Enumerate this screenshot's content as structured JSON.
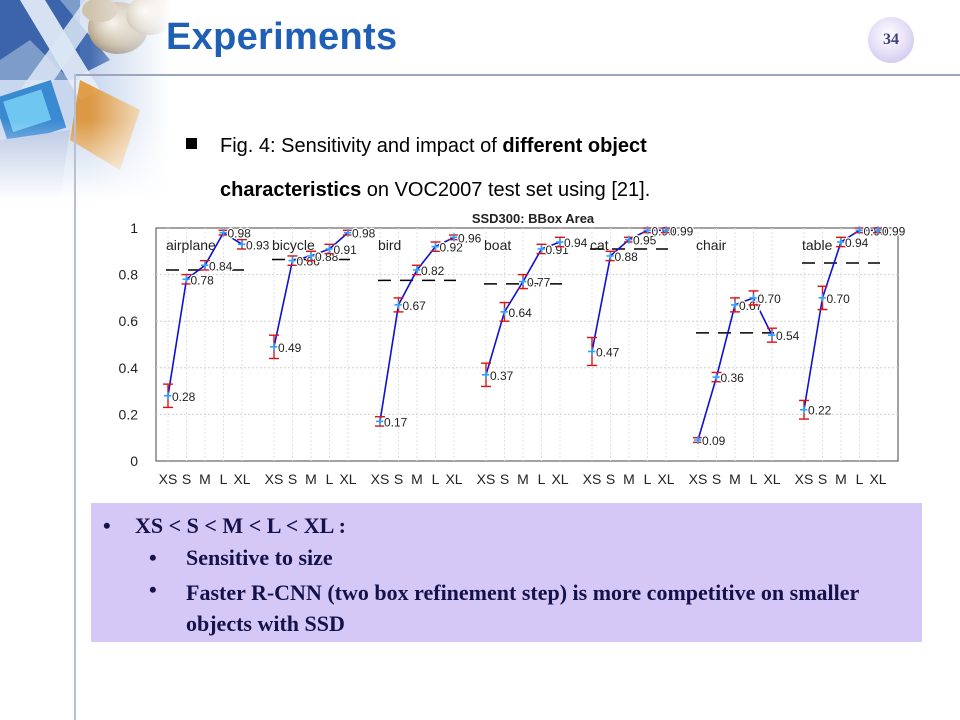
{
  "slide": {
    "title": "Experiments",
    "page_number": "34",
    "caption_line1_plain": "Fig. 4: Sensitivity and impact of ",
    "caption_line1_bold": "different object",
    "caption_line2_bold": "characteristics",
    "caption_line2_plain": " on VOC2007  test set using [21]."
  },
  "notes": {
    "bullet_glyph": "•",
    "main": "XS < S < M < L < XL :",
    "sub1": "Sensitive to size",
    "sub2": "Faster R-CNN (two box refinement step) is more competitive on smaller objects with SSD"
  },
  "chart_data": {
    "type": "line",
    "title": "SSD300: BBox Area",
    "ylim": [
      0,
      1
    ],
    "yticks": [
      0,
      0.2,
      0.4,
      0.6,
      0.8,
      1
    ],
    "ytick_labels": [
      "0",
      "0.2",
      "0.4",
      "0.6",
      "0.8",
      "1"
    ],
    "categories": [
      "XS",
      "S",
      "M",
      "L",
      "XL"
    ],
    "grid": true,
    "colors": {
      "line": "#1010d0",
      "errorbar": "#e01010",
      "mean": "#000000",
      "point": "#30a0ff"
    },
    "groups": [
      {
        "name": "airplane",
        "values": [
          0.28,
          0.78,
          0.84,
          0.98,
          0.93
        ],
        "mean": 0.82,
        "errors": [
          0.05,
          0.02,
          0.02,
          0.01,
          0.02
        ]
      },
      {
        "name": "bicycle",
        "values": [
          0.49,
          0.86,
          0.88,
          0.91,
          0.98
        ],
        "labels": [
          "0.49",
          "0.86",
          "0.88",
          "0.91",
          "0.98"
        ],
        "mean": 0.865,
        "errors": [
          0.05,
          0.02,
          0.02,
          0.02,
          0.01
        ]
      },
      {
        "name": "bird",
        "values": [
          0.17,
          0.67,
          0.82,
          0.92,
          0.96
        ],
        "mean": 0.775,
        "errors": [
          0.02,
          0.03,
          0.02,
          0.02,
          0.01
        ]
      },
      {
        "name": "boat",
        "values": [
          0.37,
          0.64,
          0.77,
          0.91,
          0.94
        ],
        "mean": 0.76,
        "errors": [
          0.05,
          0.04,
          0.03,
          0.02,
          0.02
        ]
      },
      {
        "name": "cat",
        "values": [
          0.47,
          0.88,
          0.95,
          0.99,
          0.99
        ],
        "mean": 0.91,
        "errors": [
          0.06,
          0.02,
          0.01,
          0.01,
          0.01
        ]
      },
      {
        "name": "chair",
        "values": [
          0.09,
          0.36,
          0.67,
          0.7,
          0.54
        ],
        "labels": [
          "0.09",
          "0.36",
          "0.67",
          "0.70",
          "0.54"
        ],
        "mean": 0.55,
        "errors": [
          0.01,
          0.02,
          0.03,
          0.03,
          0.03
        ]
      },
      {
        "name": "table",
        "values": [
          0.22,
          0.7,
          0.94,
          0.99,
          0.99
        ],
        "mean": 0.85,
        "errors": [
          0.04,
          0.05,
          0.02,
          0.01,
          0.01
        ]
      }
    ]
  }
}
